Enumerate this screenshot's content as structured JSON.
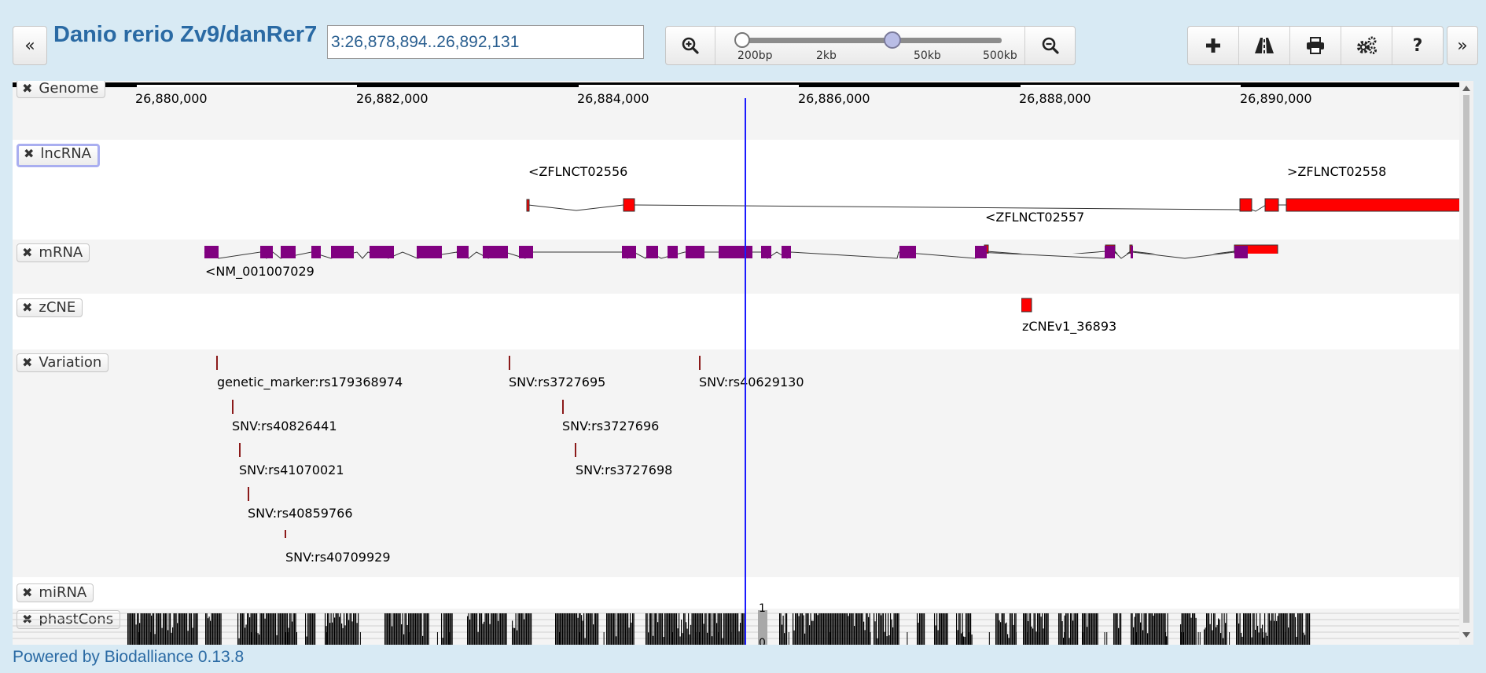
{
  "header": {
    "title": "Danio rerio Zv9/danRer7",
    "location": "3:26,878,894..26,892,131",
    "left_arrow": "«",
    "right_arrow": "»",
    "slider_labels": [
      "200bp",
      "2kb",
      "50kb",
      "500kb"
    ],
    "tool_help": "?"
  },
  "ruler": {
    "ticks": [
      "26,880,000",
      "26,882,000",
      "26,884,000",
      "26,886,000",
      "26,888,000",
      "26,890,000"
    ]
  },
  "tracks": {
    "genome": "Genome",
    "lncrna": "lncRNA",
    "mrna": "mRNA",
    "zcne": "zCNE",
    "variation": "Variation",
    "mirna": "miRNA",
    "phastcons": "phastCons"
  },
  "features": {
    "lnc1": "<ZFLNCT02556",
    "lnc2": ">ZFLNCT02558",
    "lnc3": "<ZFLNCT02557",
    "mrna1": "<NM_001007029",
    "zcne1": "zCNEv1_36893",
    "variants": [
      "genetic_marker:rs179368974",
      "SNV:rs3727695",
      "SNV:rs40629130",
      "SNV:rs40826441",
      "SNV:rs3727696",
      "SNV:rs41070021",
      "SNV:rs3727698",
      "SNV:rs40859766",
      "SNV:rs40709929"
    ]
  },
  "phastcons_scale": {
    "max": "1",
    "min": "0"
  },
  "footer": {
    "prefix": "Powered by ",
    "link": "Biodalliance",
    "version": " 0.13.8"
  },
  "colors": {
    "lncrna": "#ff0000",
    "mrna": "#800080",
    "variant": "#8b1a1a",
    "cursor": "#1a1aff",
    "title": "#2a6aa4"
  }
}
